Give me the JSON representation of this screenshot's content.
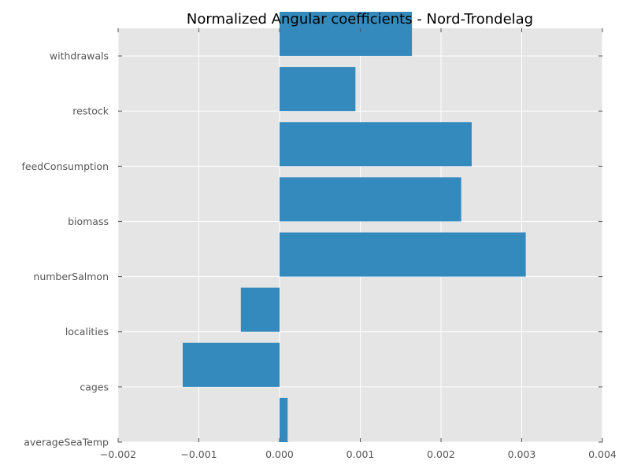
{
  "chart_data": {
    "type": "bar",
    "orientation": "horizontal",
    "title": "Normalized Angular coefficients - Nord-Trondelag",
    "xlabel": "",
    "ylabel": "",
    "xlim": [
      -0.002,
      0.004
    ],
    "x_ticks": [
      -0.002,
      -0.001,
      0.0,
      0.001,
      0.002,
      0.003,
      0.004
    ],
    "x_tick_labels": [
      "−0.002",
      "−0.001",
      "0.000",
      "0.001",
      "0.002",
      "0.003",
      "0.004"
    ],
    "categories": [
      "averageSeaTemp",
      "cages",
      "localities",
      "numberSalmon",
      "biomass",
      "feedConsumption",
      "restock",
      "withdrawals"
    ],
    "values": [
      0.0001,
      -0.0012,
      -0.00048,
      0.00305,
      0.00225,
      0.00238,
      0.00094,
      0.00164
    ],
    "bar_color": "#348abd",
    "background_color": "#e5e5e5",
    "grid": true,
    "legend": "none"
  }
}
